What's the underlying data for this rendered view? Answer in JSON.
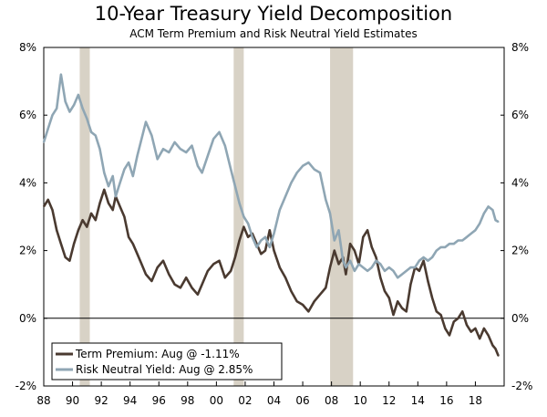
{
  "chart_data": {
    "type": "line",
    "title": "10-Year Treasury Yield Decomposition",
    "subtitle": "ACM Term Premium and Risk Neutral Yield Estimates",
    "xlim": [
      1988,
      2020
    ],
    "ylim": [
      -2,
      8
    ],
    "y_ticks": [
      -2,
      0,
      2,
      4,
      6,
      8
    ],
    "y_tick_labels": [
      "-2%",
      "0%",
      "2%",
      "4%",
      "6%",
      "8%"
    ],
    "x_ticks": [
      1988,
      1990,
      1992,
      1994,
      1996,
      1998,
      2000,
      2002,
      2004,
      2006,
      2008,
      2010,
      2012,
      2014,
      2016,
      2018
    ],
    "x_tick_labels": [
      "88",
      "90",
      "92",
      "94",
      "96",
      "98",
      "00",
      "02",
      "04",
      "06",
      "08",
      "10",
      "12",
      "14",
      "16",
      "18"
    ],
    "recessions": [
      [
        1990.5,
        1991.2
      ],
      [
        2001.2,
        2001.9
      ],
      [
        2007.9,
        2009.5
      ]
    ],
    "legend_position": "bottom-left",
    "series": [
      {
        "name": "Term Premium",
        "legend_label": "Term Premium: Aug @ -1.11%",
        "color": "#4a3a30",
        "x": [
          1988.0,
          1988.3,
          1988.6,
          1988.9,
          1989.2,
          1989.5,
          1989.8,
          1990.1,
          1990.4,
          1990.7,
          1991.0,
          1991.3,
          1991.6,
          1991.9,
          1992.2,
          1992.5,
          1992.8,
          1993.0,
          1993.3,
          1993.6,
          1993.9,
          1994.2,
          1994.5,
          1994.8,
          1995.1,
          1995.5,
          1995.9,
          1996.3,
          1996.7,
          1997.1,
          1997.5,
          1997.9,
          1998.3,
          1998.7,
          1999.0,
          1999.4,
          1999.8,
          2000.2,
          2000.6,
          2001.0,
          2001.3,
          2001.6,
          2001.9,
          2002.2,
          2002.5,
          2002.8,
          2003.1,
          2003.4,
          2003.7,
          2004.0,
          2004.4,
          2004.8,
          2005.2,
          2005.6,
          2006.0,
          2006.4,
          2006.8,
          2007.2,
          2007.6,
          2007.9,
          2008.2,
          2008.5,
          2008.8,
          2009.0,
          2009.3,
          2009.6,
          2009.9,
          2010.2,
          2010.5,
          2010.8,
          2011.1,
          2011.4,
          2011.7,
          2012.0,
          2012.3,
          2012.6,
          2012.9,
          2013.2,
          2013.5,
          2013.8,
          2014.1,
          2014.4,
          2014.7,
          2015.0,
          2015.3,
          2015.6,
          2015.9,
          2016.2,
          2016.5,
          2016.8,
          2017.1,
          2017.4,
          2017.7,
          2018.0,
          2018.3,
          2018.6,
          2018.9,
          2019.2,
          2019.4,
          2019.6
        ],
        "values": [
          3.3,
          3.5,
          3.2,
          2.6,
          2.2,
          1.8,
          1.7,
          2.2,
          2.6,
          2.9,
          2.7,
          3.1,
          2.9,
          3.4,
          3.8,
          3.4,
          3.2,
          3.6,
          3.3,
          3.0,
          2.4,
          2.2,
          1.9,
          1.6,
          1.3,
          1.1,
          1.5,
          1.7,
          1.3,
          1.0,
          0.9,
          1.2,
          0.9,
          0.7,
          1.0,
          1.4,
          1.6,
          1.7,
          1.2,
          1.4,
          1.8,
          2.3,
          2.7,
          2.4,
          2.5,
          2.2,
          1.9,
          2.0,
          2.6,
          2.0,
          1.5,
          1.2,
          0.8,
          0.5,
          0.4,
          0.2,
          0.5,
          0.7,
          0.9,
          1.5,
          2.0,
          1.6,
          1.8,
          1.3,
          2.2,
          2.0,
          1.6,
          2.4,
          2.6,
          2.1,
          1.8,
          1.2,
          0.8,
          0.6,
          0.1,
          0.5,
          0.3,
          0.2,
          1.0,
          1.5,
          1.4,
          1.7,
          1.1,
          0.6,
          0.2,
          0.1,
          -0.3,
          -0.5,
          -0.1,
          0.0,
          0.2,
          -0.2,
          -0.4,
          -0.3,
          -0.6,
          -0.3,
          -0.5,
          -0.8,
          -0.9,
          -1.11
        ]
      },
      {
        "name": "Risk Neutral Yield",
        "legend_label": "Risk Neutral Yield: Aug @ 2.85%",
        "color": "#8fa6b4",
        "x": [
          1988.0,
          1988.3,
          1988.6,
          1988.9,
          1989.2,
          1989.5,
          1989.8,
          1990.1,
          1990.4,
          1990.7,
          1991.0,
          1991.3,
          1991.6,
          1991.9,
          1992.2,
          1992.5,
          1992.8,
          1993.0,
          1993.3,
          1993.6,
          1993.9,
          1994.2,
          1994.5,
          1994.8,
          1995.1,
          1995.5,
          1995.9,
          1996.3,
          1996.7,
          1997.1,
          1997.5,
          1997.9,
          1998.3,
          1998.7,
          1999.0,
          1999.4,
          1999.8,
          2000.2,
          2000.6,
          2001.0,
          2001.3,
          2001.6,
          2001.9,
          2002.2,
          2002.5,
          2002.8,
          2003.1,
          2003.4,
          2003.7,
          2004.0,
          2004.4,
          2004.8,
          2005.2,
          2005.6,
          2006.0,
          2006.4,
          2006.8,
          2007.2,
          2007.6,
          2007.9,
          2008.2,
          2008.5,
          2008.8,
          2009.0,
          2009.3,
          2009.6,
          2009.9,
          2010.2,
          2010.5,
          2010.8,
          2011.1,
          2011.4,
          2011.7,
          2012.0,
          2012.3,
          2012.6,
          2012.9,
          2013.2,
          2013.5,
          2013.8,
          2014.1,
          2014.4,
          2014.7,
          2015.0,
          2015.3,
          2015.6,
          2015.9,
          2016.2,
          2016.5,
          2016.8,
          2017.1,
          2017.4,
          2017.7,
          2018.0,
          2018.3,
          2018.6,
          2018.9,
          2019.2,
          2019.4,
          2019.6
        ],
        "values": [
          5.2,
          5.6,
          6.0,
          6.2,
          7.2,
          6.4,
          6.1,
          6.3,
          6.6,
          6.2,
          5.9,
          5.5,
          5.4,
          5.0,
          4.3,
          3.9,
          4.2,
          3.6,
          4.0,
          4.4,
          4.6,
          4.2,
          4.8,
          5.3,
          5.8,
          5.4,
          4.7,
          5.0,
          4.9,
          5.2,
          5.0,
          4.9,
          5.1,
          4.5,
          4.3,
          4.8,
          5.3,
          5.5,
          5.1,
          4.4,
          3.9,
          3.4,
          3.0,
          2.8,
          2.4,
          2.1,
          2.3,
          2.4,
          2.1,
          2.5,
          3.2,
          3.6,
          4.0,
          4.3,
          4.5,
          4.6,
          4.4,
          4.3,
          3.5,
          3.1,
          2.3,
          2.6,
          1.7,
          1.5,
          1.7,
          1.4,
          1.6,
          1.5,
          1.4,
          1.5,
          1.7,
          1.6,
          1.4,
          1.5,
          1.4,
          1.2,
          1.3,
          1.4,
          1.5,
          1.5,
          1.7,
          1.8,
          1.7,
          1.8,
          2.0,
          2.1,
          2.1,
          2.2,
          2.2,
          2.3,
          2.3,
          2.4,
          2.5,
          2.6,
          2.8,
          3.1,
          3.3,
          3.2,
          2.9,
          2.85
        ]
      }
    ]
  }
}
